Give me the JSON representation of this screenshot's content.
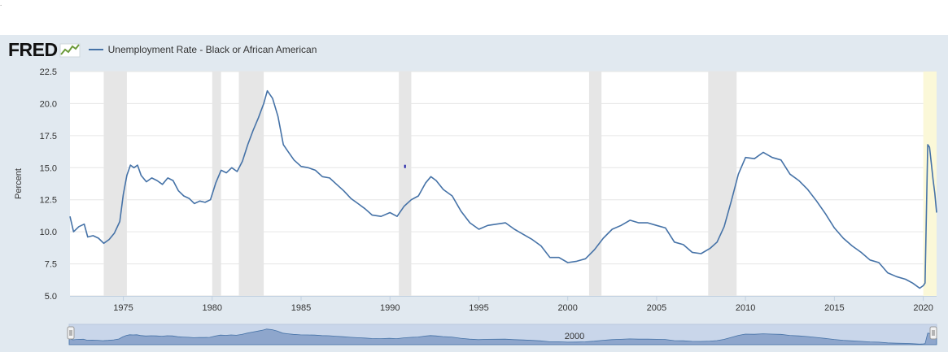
{
  "page": {
    "corner_mark": "."
  },
  "header": {
    "logo_text": "FRED",
    "logo_icon": "fred-chart-icon",
    "series_color": "#4572a7"
  },
  "chart_data": {
    "type": "line",
    "ylabel": "Percent",
    "xlabel": "",
    "ylim": [
      5.0,
      22.5
    ],
    "yticks": [
      "5.0",
      "7.5",
      "10.0",
      "12.5",
      "15.0",
      "17.5",
      "20.0",
      "22.5"
    ],
    "xlim": [
      1972.0,
      2020.75
    ],
    "xticks": [
      "1975",
      "1980",
      "1985",
      "1990",
      "1995",
      "2000",
      "2005",
      "2010",
      "2015",
      "2020"
    ],
    "grid": true,
    "legend_position": "top-left",
    "recessions": [
      [
        1973.9,
        1975.2
      ],
      [
        1980.0,
        1980.5
      ],
      [
        1981.5,
        1982.9
      ],
      [
        1990.5,
        1991.2
      ],
      [
        2001.2,
        2001.9
      ],
      [
        2007.9,
        2009.5
      ]
    ],
    "highlight_period": [
      2020.0,
      2020.75
    ],
    "navigator_label": "2000",
    "series": [
      {
        "name": "Unemployment Rate - Black or African American",
        "color": "#4572a7",
        "x": [
          1972.0,
          1972.2,
          1972.5,
          1972.8,
          1973.0,
          1973.3,
          1973.6,
          1973.9,
          1974.2,
          1974.5,
          1974.8,
          1975.0,
          1975.2,
          1975.4,
          1975.6,
          1975.8,
          1976.0,
          1976.3,
          1976.6,
          1976.9,
          1977.2,
          1977.5,
          1977.8,
          1978.1,
          1978.4,
          1978.7,
          1979.0,
          1979.3,
          1979.6,
          1979.9,
          1980.2,
          1980.5,
          1980.8,
          1981.1,
          1981.4,
          1981.7,
          1982.0,
          1982.3,
          1982.6,
          1982.9,
          1983.1,
          1983.4,
          1983.7,
          1984.0,
          1984.3,
          1984.6,
          1985.0,
          1985.4,
          1985.8,
          1986.2,
          1986.6,
          1987.0,
          1987.4,
          1987.8,
          1988.2,
          1988.6,
          1989.0,
          1989.5,
          1990.0,
          1990.4,
          1990.8,
          1991.2,
          1991.6,
          1992.0,
          1992.3,
          1992.6,
          1993.0,
          1993.5,
          1994.0,
          1994.5,
          1995.0,
          1995.5,
          1996.0,
          1996.5,
          1997.0,
          1997.5,
          1998.0,
          1998.5,
          1999.0,
          1999.5,
          2000.0,
          2000.5,
          2001.0,
          2001.5,
          2002.0,
          2002.5,
          2003.0,
          2003.5,
          2004.0,
          2004.5,
          2005.0,
          2005.5,
          2006.0,
          2006.5,
          2007.0,
          2007.5,
          2008.0,
          2008.4,
          2008.8,
          2009.2,
          2009.6,
          2010.0,
          2010.5,
          2011.0,
          2011.5,
          2012.0,
          2012.5,
          2013.0,
          2013.5,
          2014.0,
          2014.5,
          2015.0,
          2015.5,
          2016.0,
          2016.5,
          2017.0,
          2017.5,
          2018.0,
          2018.5,
          2019.0,
          2019.4,
          2019.8,
          2020.0,
          2020.1,
          2020.25,
          2020.35,
          2020.45,
          2020.55,
          2020.65,
          2020.75
        ],
        "values": [
          11.2,
          10.0,
          10.4,
          10.6,
          9.6,
          9.7,
          9.5,
          9.1,
          9.4,
          9.9,
          10.8,
          12.9,
          14.4,
          15.2,
          15.0,
          15.2,
          14.4,
          13.9,
          14.2,
          14.0,
          13.7,
          14.2,
          14.0,
          13.2,
          12.8,
          12.6,
          12.2,
          12.4,
          12.3,
          12.5,
          13.8,
          14.8,
          14.6,
          15.0,
          14.7,
          15.5,
          16.8,
          17.9,
          18.9,
          20.0,
          21.0,
          20.4,
          19.0,
          16.8,
          16.2,
          15.6,
          15.1,
          15.0,
          14.8,
          14.3,
          14.2,
          13.7,
          13.2,
          12.6,
          12.2,
          11.8,
          11.3,
          11.2,
          11.5,
          11.2,
          12.0,
          12.5,
          12.8,
          13.8,
          14.3,
          14.0,
          13.3,
          12.8,
          11.6,
          10.7,
          10.2,
          10.5,
          10.6,
          10.7,
          10.2,
          9.8,
          9.4,
          8.9,
          8.0,
          8.0,
          7.6,
          7.7,
          7.9,
          8.6,
          9.5,
          10.2,
          10.5,
          10.9,
          10.7,
          10.7,
          10.5,
          10.3,
          9.2,
          9.0,
          8.4,
          8.3,
          8.7,
          9.2,
          10.4,
          12.4,
          14.5,
          15.8,
          15.7,
          16.2,
          15.8,
          15.6,
          14.5,
          14.0,
          13.3,
          12.4,
          11.4,
          10.3,
          9.5,
          8.9,
          8.4,
          7.8,
          7.6,
          6.8,
          6.5,
          6.3,
          6.0,
          5.6,
          5.8,
          6.0,
          16.8,
          16.6,
          15.4,
          14.1,
          13.0,
          11.5
        ]
      }
    ]
  }
}
